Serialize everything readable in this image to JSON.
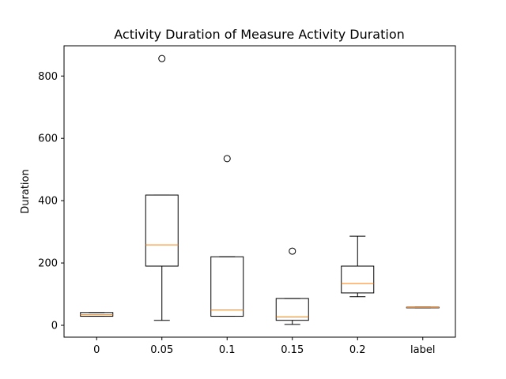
{
  "chart_data": {
    "type": "box",
    "title": "Activity Duration of Measure Activity Duration",
    "xlabel": "",
    "ylabel": "Duration",
    "ylim": [
      -38,
      897
    ],
    "yticks": [
      0,
      200,
      400,
      600,
      800
    ],
    "categories": [
      "0",
      "0.05",
      "0.1",
      "0.15",
      "0.2",
      "label"
    ],
    "boxes": [
      {
        "category": "0",
        "whisker_low": 29,
        "q1": 29,
        "median": 34,
        "q3": 41,
        "whisker_high": 41,
        "outliers": []
      },
      {
        "category": "0.05",
        "whisker_low": 16,
        "q1": 190,
        "median": 258,
        "q3": 418,
        "whisker_high": 418,
        "outliers": [
          856
        ]
      },
      {
        "category": "0.1",
        "whisker_low": 29,
        "q1": 29,
        "median": 49,
        "q3": 220,
        "whisker_high": 220,
        "outliers": [
          535
        ]
      },
      {
        "category": "0.15",
        "whisker_low": 3,
        "q1": 16,
        "median": 27,
        "q3": 86,
        "whisker_high": 86,
        "outliers": [
          238
        ]
      },
      {
        "category": "0.2",
        "whisker_low": 92,
        "q1": 104,
        "median": 134,
        "q3": 190,
        "whisker_high": 286,
        "outliers": []
      },
      {
        "category": "label",
        "whisker_low": 56,
        "q1": 56,
        "median": 57,
        "q3": 58,
        "whisker_high": 58,
        "outliers": []
      }
    ],
    "colors": {
      "box": "#000000",
      "median": "#ff7f0e",
      "outlier": "#000000"
    },
    "grid": false,
    "legend": "none"
  }
}
